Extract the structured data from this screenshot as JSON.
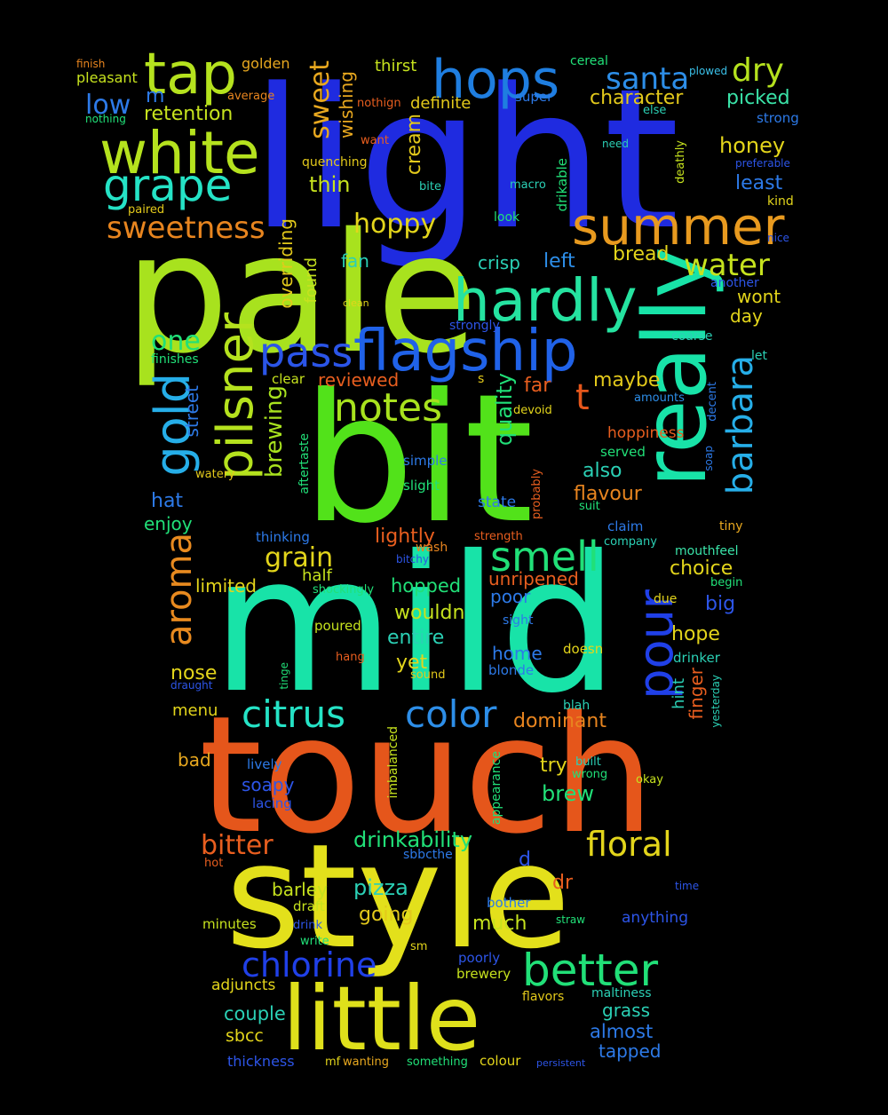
{
  "words": [
    {
      "text": "light",
      "color": "#1f2be0"
    },
    {
      "text": "pale",
      "color": "#a8e21e"
    },
    {
      "text": "bit",
      "color": "#52e21a"
    },
    {
      "text": "mild",
      "color": "#18e3a8"
    },
    {
      "text": "touch",
      "color": "#e5561b"
    },
    {
      "text": "style",
      "color": "#e3e01b"
    },
    {
      "text": "little",
      "color": "#dfe01b"
    },
    {
      "text": "really",
      "color": "#18e3a8"
    },
    {
      "text": "hops",
      "color": "#1f7ee0"
    },
    {
      "text": "tap",
      "color": "#b5e21e"
    },
    {
      "text": "white",
      "color": "#b5e21e"
    },
    {
      "text": "grape",
      "color": "#25e3c6"
    },
    {
      "text": "summer",
      "color": "#e89a1f"
    },
    {
      "text": "hardly",
      "color": "#25e3a0"
    },
    {
      "text": "flagship",
      "color": "#2062e8"
    },
    {
      "text": "pass",
      "color": "#2b55e8"
    },
    {
      "text": "pilsner",
      "color": "#b5e21e"
    },
    {
      "text": "gold",
      "color": "#26aee8"
    },
    {
      "text": "aroma",
      "color": "#e88a1f"
    },
    {
      "text": "notes",
      "color": "#a8e21e"
    },
    {
      "text": "smell",
      "color": "#21e078"
    },
    {
      "text": "pour",
      "color": "#2040e8"
    },
    {
      "text": "barbara",
      "color": "#26aee8"
    },
    {
      "text": "citrus",
      "color": "#25e3c6"
    },
    {
      "text": "color",
      "color": "#2d8ee8"
    },
    {
      "text": "better",
      "color": "#21e078"
    },
    {
      "text": "chlorine",
      "color": "#2040e8"
    },
    {
      "text": "floral",
      "color": "#e3d51b"
    },
    {
      "text": "santa",
      "color": "#2d8ee8"
    },
    {
      "text": "dry",
      "color": "#b5e21e"
    },
    {
      "text": "water",
      "color": "#c6e21e"
    },
    {
      "text": "sweetness",
      "color": "#e8851f"
    },
    {
      "text": "low",
      "color": "#2d7ae8"
    },
    {
      "text": "m",
      "color": "#2d7ae8"
    },
    {
      "text": "retention",
      "color": "#c6e21e"
    },
    {
      "text": "sweet",
      "color": "#e8a81f"
    },
    {
      "text": "thin",
      "color": "#c6e21e"
    },
    {
      "text": "hoppy",
      "color": "#e3d51b"
    },
    {
      "text": "cream",
      "color": "#e3c91b"
    },
    {
      "text": "wishing",
      "color": "#e8a81f"
    },
    {
      "text": "thirst",
      "color": "#c6e21e"
    },
    {
      "text": "definite",
      "color": "#e3c91b"
    },
    {
      "text": "character",
      "color": "#e3c91b"
    },
    {
      "text": "picked",
      "color": "#3ae3a8"
    },
    {
      "text": "honey",
      "color": "#e3d51b"
    },
    {
      "text": "least",
      "color": "#2d7ae8"
    },
    {
      "text": "bread",
      "color": "#e3d51b"
    },
    {
      "text": "crisp",
      "color": "#2bd0b5"
    },
    {
      "text": "left",
      "color": "#2d8ee8"
    },
    {
      "text": "fan",
      "color": "#2bd0b5"
    },
    {
      "text": "one",
      "color": "#21e078"
    },
    {
      "text": "wont",
      "color": "#e3d51b"
    },
    {
      "text": "day",
      "color": "#e3d51b"
    },
    {
      "text": "golden",
      "color": "#e8a81f"
    },
    {
      "text": "pleasant",
      "color": "#c6e21e"
    },
    {
      "text": "finish",
      "color": "#e8851f"
    },
    {
      "text": "nothing",
      "color": "#21e078"
    },
    {
      "text": "average",
      "color": "#e8851f"
    },
    {
      "text": "want",
      "color": "#e85e1f"
    },
    {
      "text": "nothign",
      "color": "#e85e1f"
    },
    {
      "text": "quenching",
      "color": "#e3c91b"
    },
    {
      "text": "super",
      "color": "#2d7ae8"
    },
    {
      "text": "cereal",
      "color": "#21e078"
    },
    {
      "text": "plowed",
      "color": "#3ac0e8"
    },
    {
      "text": "else",
      "color": "#2bd0b5"
    },
    {
      "text": "strong",
      "color": "#2d7ae8"
    },
    {
      "text": "need",
      "color": "#2bd0b5"
    },
    {
      "text": "deathly",
      "color": "#c6e21e"
    },
    {
      "text": "preferable",
      "color": "#2d55e8"
    },
    {
      "text": "kind",
      "color": "#e3d51b"
    },
    {
      "text": "nice",
      "color": "#2d55e8"
    },
    {
      "text": "another",
      "color": "#2d55e8"
    },
    {
      "text": "bite",
      "color": "#2bd0b5"
    },
    {
      "text": "macro",
      "color": "#2bd0b5"
    },
    {
      "text": "look",
      "color": "#21e078"
    },
    {
      "text": "drikable",
      "color": "#21e078"
    },
    {
      "text": "paired",
      "color": "#e3c91b"
    },
    {
      "text": "overriding",
      "color": "#e3c91b"
    },
    {
      "text": "found",
      "color": "#c6e21e"
    },
    {
      "text": "clean",
      "color": "#e3d51b"
    },
    {
      "text": "strongly",
      "color": "#2d55e8"
    },
    {
      "text": "finishes",
      "color": "#21e078"
    },
    {
      "text": "coarse",
      "color": "#2bd0b5"
    },
    {
      "text": "let",
      "color": "#2bd0b5"
    },
    {
      "text": "amounts",
      "color": "#2d8ee8"
    },
    {
      "text": "decent",
      "color": "#2d7ae8"
    },
    {
      "text": "clear",
      "color": "#c6e21e"
    },
    {
      "text": "reviewed",
      "color": "#e85e1f"
    },
    {
      "text": "s",
      "color": "#e3c91b"
    },
    {
      "text": "quality",
      "color": "#21e078"
    },
    {
      "text": "far",
      "color": "#e85e1f"
    },
    {
      "text": "maybe",
      "color": "#e3c91b"
    },
    {
      "text": "t",
      "color": "#e5561b"
    },
    {
      "text": "devoid",
      "color": "#e3d51b"
    },
    {
      "text": "hoppiness",
      "color": "#e85e1f"
    },
    {
      "text": "served",
      "color": "#21e078"
    },
    {
      "text": "soap",
      "color": "#2d7ae8"
    },
    {
      "text": "brewing",
      "color": "#a8e21e"
    },
    {
      "text": "street",
      "color": "#2d7ae8"
    },
    {
      "text": "aftertaste",
      "color": "#21e078"
    },
    {
      "text": "watery",
      "color": "#e3c91b"
    },
    {
      "text": "simple",
      "color": "#2d7ae8"
    },
    {
      "text": "slight",
      "color": "#21e078"
    },
    {
      "text": "also",
      "color": "#2bd0b5"
    },
    {
      "text": "flavour",
      "color": "#e8851f"
    },
    {
      "text": "state",
      "color": "#2d7ae8"
    },
    {
      "text": "probably",
      "color": "#e85e1f"
    },
    {
      "text": "suit",
      "color": "#21e078"
    },
    {
      "text": "claim",
      "color": "#2d7ae8"
    },
    {
      "text": "tiny",
      "color": "#e8a81f"
    },
    {
      "text": "hat",
      "color": "#2d7ae8"
    },
    {
      "text": "enjoy",
      "color": "#21e078"
    },
    {
      "text": "thinking",
      "color": "#2d7ae8"
    },
    {
      "text": "lightly",
      "color": "#e85e1f"
    },
    {
      "text": "strength",
      "color": "#e85e1f"
    },
    {
      "text": "company",
      "color": "#2bd0b5"
    },
    {
      "text": "bitchy",
      "color": "#2d55e8"
    },
    {
      "text": "wash",
      "color": "#e8851f"
    },
    {
      "text": "mouthfeel",
      "color": "#3ae3a8"
    },
    {
      "text": "grain",
      "color": "#e3d51b"
    },
    {
      "text": "choice",
      "color": "#e3d51b"
    },
    {
      "text": "half",
      "color": "#c6e21e"
    },
    {
      "text": "unripened",
      "color": "#e85e1f"
    },
    {
      "text": "begin",
      "color": "#21e078"
    },
    {
      "text": "limited",
      "color": "#e3d51b"
    },
    {
      "text": "shockingly",
      "color": "#21e078"
    },
    {
      "text": "hopped",
      "color": "#21e078"
    },
    {
      "text": "poor",
      "color": "#2d7ae8"
    },
    {
      "text": "due",
      "color": "#e3d51b"
    },
    {
      "text": "big",
      "color": "#2d55e8"
    },
    {
      "text": "wouldn",
      "color": "#c6e21e"
    },
    {
      "text": "sight",
      "color": "#2d7ae8"
    },
    {
      "text": "poured",
      "color": "#c6e21e"
    },
    {
      "text": "entire",
      "color": "#2bd0b5"
    },
    {
      "text": "hope",
      "color": "#e3d51b"
    },
    {
      "text": "hang",
      "color": "#e85e1f"
    },
    {
      "text": "home",
      "color": "#2d7ae8"
    },
    {
      "text": "doesn",
      "color": "#e3d51b"
    },
    {
      "text": "drinker",
      "color": "#2bd0b5"
    },
    {
      "text": "nose",
      "color": "#e3d51b"
    },
    {
      "text": "yet",
      "color": "#e3d51b"
    },
    {
      "text": "blonde",
      "color": "#2d7ae8"
    },
    {
      "text": "hint",
      "color": "#2bd0b5"
    },
    {
      "text": "draught",
      "color": "#2d55e8"
    },
    {
      "text": "sound",
      "color": "#e3c91b"
    },
    {
      "text": "tinge",
      "color": "#21e078"
    },
    {
      "text": "finger",
      "color": "#e85e1f"
    },
    {
      "text": "yesterday",
      "color": "#2bd0b5"
    },
    {
      "text": "menu",
      "color": "#e3d51b"
    },
    {
      "text": "blah",
      "color": "#2bd0b5"
    },
    {
      "text": "dominant",
      "color": "#e8851f"
    },
    {
      "text": "bad",
      "color": "#e8a81f"
    },
    {
      "text": "imbalanced",
      "color": "#c6e21e"
    },
    {
      "text": "lively",
      "color": "#2d7ae8"
    },
    {
      "text": "appearance",
      "color": "#21e078"
    },
    {
      "text": "try",
      "color": "#e3d51b"
    },
    {
      "text": "built",
      "color": "#2bd0b5"
    },
    {
      "text": "wrong",
      "color": "#21e078"
    },
    {
      "text": "soapy",
      "color": "#2d55e8"
    },
    {
      "text": "okay",
      "color": "#c6e21e"
    },
    {
      "text": "lacing",
      "color": "#2d55e8"
    },
    {
      "text": "brew",
      "color": "#21e078"
    },
    {
      "text": "bitter",
      "color": "#e85e1f"
    },
    {
      "text": "drinkability",
      "color": "#21e078"
    },
    {
      "text": "sbbcthe",
      "color": "#2d7ae8"
    },
    {
      "text": "d",
      "color": "#2d55e8"
    },
    {
      "text": "hot",
      "color": "#e85e1f"
    },
    {
      "text": "time",
      "color": "#2d55e8"
    },
    {
      "text": "barley",
      "color": "#c6e21e"
    },
    {
      "text": "pizza",
      "color": "#2bd0b5"
    },
    {
      "text": "dr",
      "color": "#e85e1f"
    },
    {
      "text": "draft",
      "color": "#c6e21e"
    },
    {
      "text": "going",
      "color": "#e3c91b"
    },
    {
      "text": "bother",
      "color": "#2d7ae8"
    },
    {
      "text": "straw",
      "color": "#21e078"
    },
    {
      "text": "anything",
      "color": "#2d55e8"
    },
    {
      "text": "minutes",
      "color": "#c6e21e"
    },
    {
      "text": "drink",
      "color": "#2d55e8"
    },
    {
      "text": "much",
      "color": "#c6e21e"
    },
    {
      "text": "write",
      "color": "#21e078"
    },
    {
      "text": "sm",
      "color": "#e3d51b"
    },
    {
      "text": "poorly",
      "color": "#2d55e8"
    },
    {
      "text": "adjuncts",
      "color": "#e3d51b"
    },
    {
      "text": "brewery",
      "color": "#c6e21e"
    },
    {
      "text": "maltiness",
      "color": "#2bd0b5"
    },
    {
      "text": "couple",
      "color": "#2bd0b5"
    },
    {
      "text": "flavors",
      "color": "#e3c91b"
    },
    {
      "text": "grass",
      "color": "#2bd0b5"
    },
    {
      "text": "sbcc",
      "color": "#e3d51b"
    },
    {
      "text": "almost",
      "color": "#2d7ae8"
    },
    {
      "text": "tapped",
      "color": "#2d7ae8"
    },
    {
      "text": "thickness",
      "color": "#2d55e8"
    },
    {
      "text": "mf",
      "color": "#e3d51b"
    },
    {
      "text": "wanting",
      "color": "#e8a81f"
    },
    {
      "text": "something",
      "color": "#21e078"
    },
    {
      "text": "colour",
      "color": "#e3d51b"
    },
    {
      "text": "persistent",
      "color": "#2d55e8"
    }
  ]
}
